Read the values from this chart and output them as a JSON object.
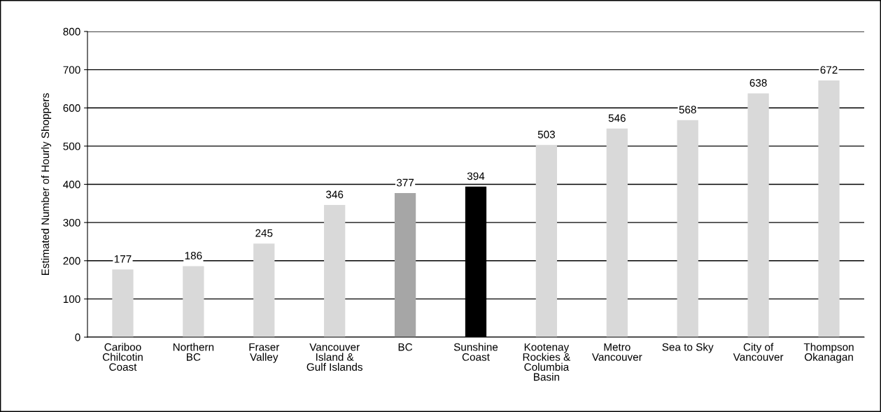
{
  "chart_data": {
    "type": "bar",
    "ylabel": "Estimated Number of Hourly Shoppers",
    "categories": [
      "Cariboo\nChilcotin\nCoast",
      "Northern\nBC",
      "Fraser\nValley",
      "Vancouver\nIsland &\nGulf Islands",
      "BC",
      "Sunshine\nCoast",
      "Kootenay\nRockies &\nColumbia\nBasin",
      "Metro\nVancouver",
      "Sea to Sky",
      "City of\nVancouver",
      "Thompson\nOkanagan"
    ],
    "values": [
      177,
      186,
      245,
      346,
      377,
      394,
      503,
      546,
      568,
      638,
      672
    ],
    "colors": [
      "#d9d9d9",
      "#d9d9d9",
      "#d9d9d9",
      "#d9d9d9",
      "#a6a6a6",
      "#000000",
      "#d9d9d9",
      "#d9d9d9",
      "#d9d9d9",
      "#d9d9d9",
      "#d9d9d9"
    ],
    "ylim": [
      0,
      800
    ],
    "yticks": [
      0,
      100,
      200,
      300,
      400,
      500,
      600,
      700,
      800
    ],
    "grid": "y",
    "data_labels": true
  }
}
